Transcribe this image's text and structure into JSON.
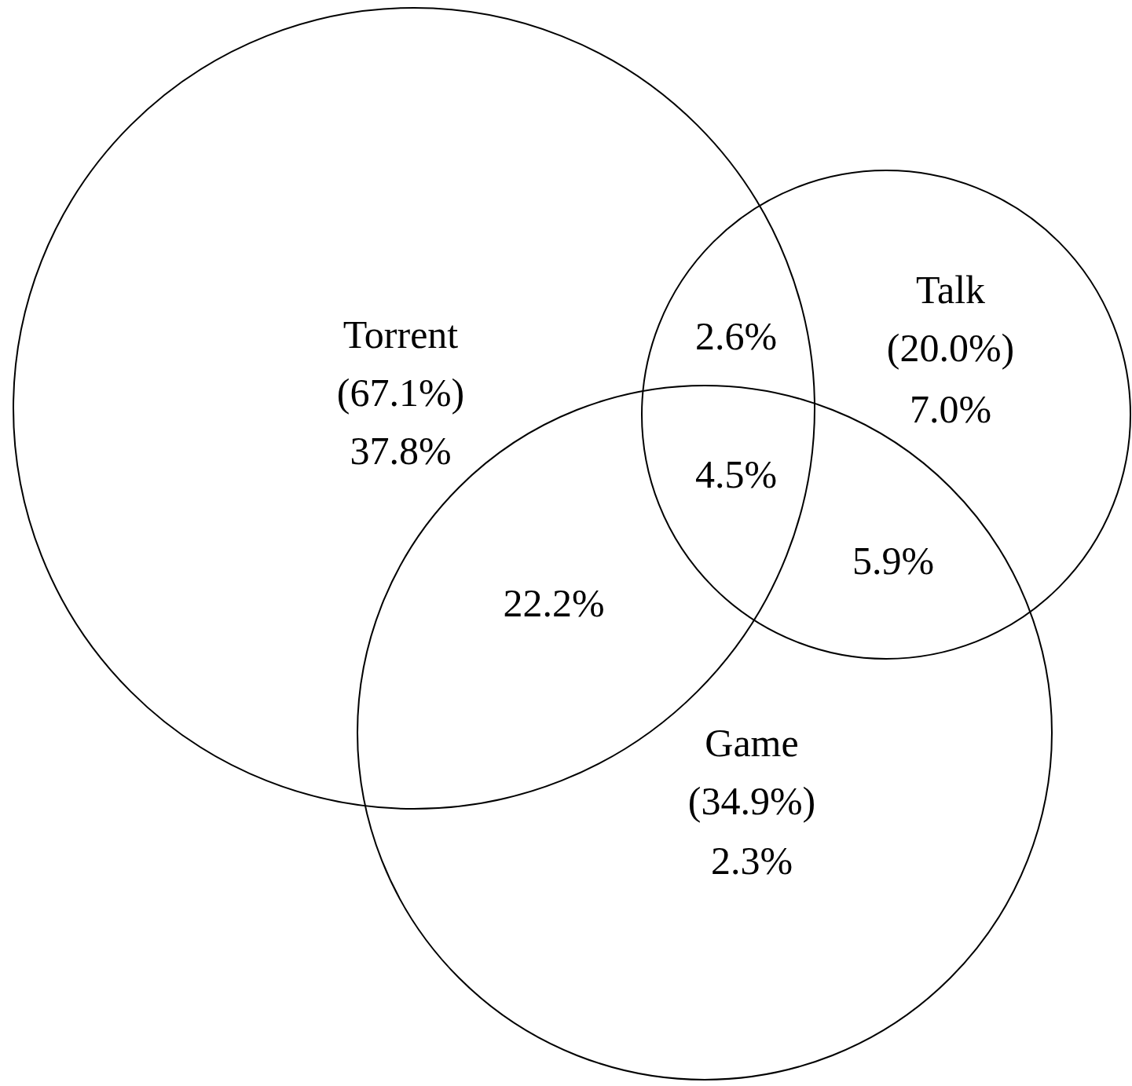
{
  "chart_data": {
    "type": "other",
    "categories": [
      "Torrent",
      "Talk",
      "Game"
    ],
    "values": [
      67.1,
      20.0,
      34.9
    ],
    "value_labels": [
      "(67.1%)",
      "(20.0%)",
      "(34.9%)"
    ],
    "annotations": [
      "37.8%",
      "7.0%",
      "2.3%",
      "2.6%",
      "4.5%",
      "22.2%",
      "5.9%"
    ]
  }
}
